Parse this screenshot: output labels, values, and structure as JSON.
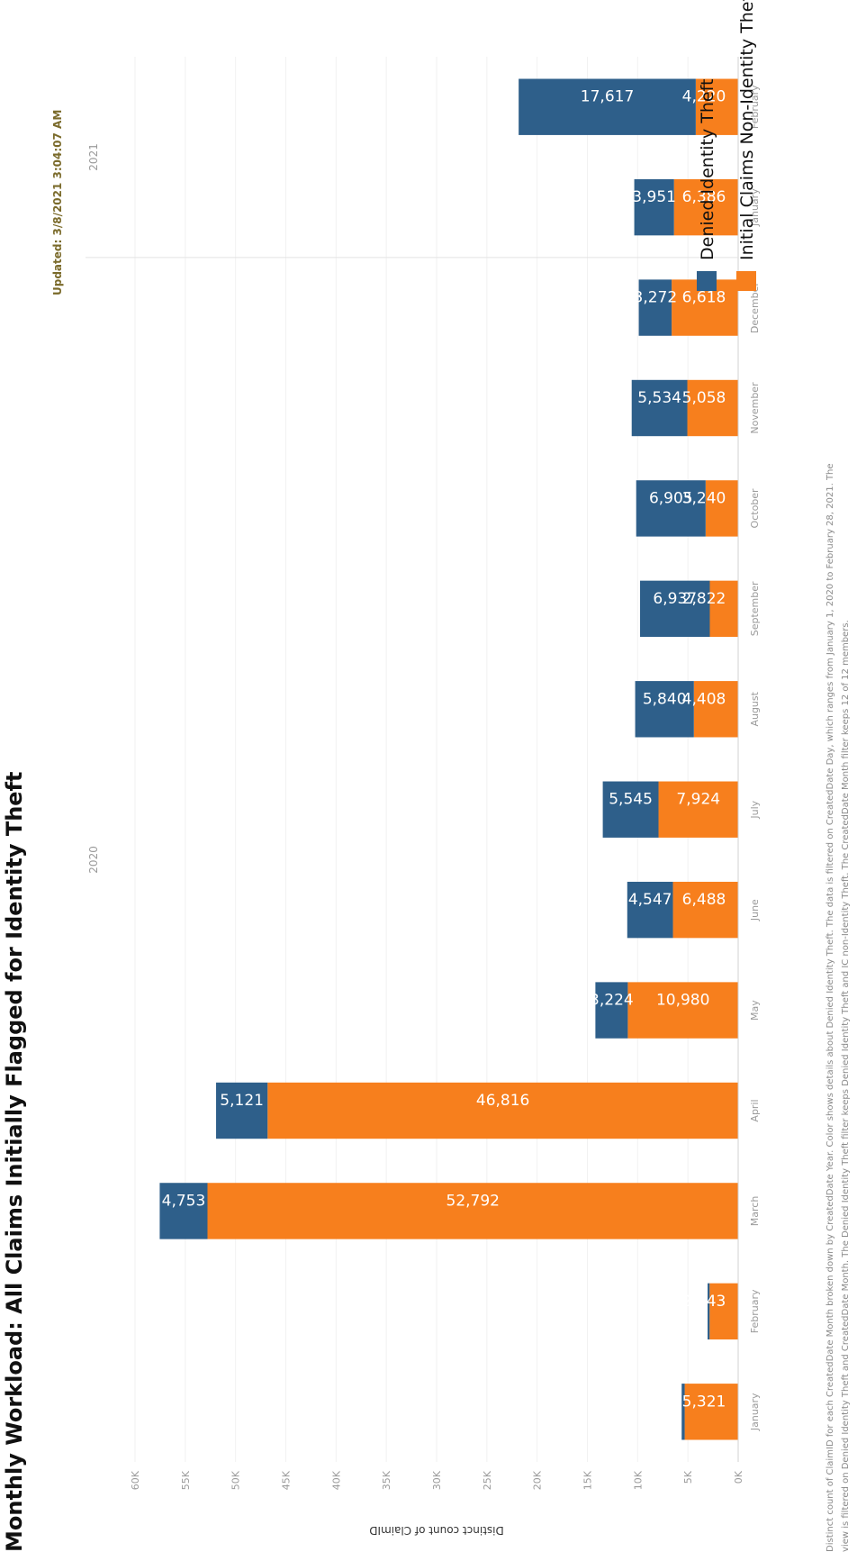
{
  "title": "Monthly Workload: All Claims Initially Flagged for Identity Theft",
  "updated_label": "Updated:",
  "updated_value": "3/8/2021 3:04:07 AM",
  "footnote": [
    "Distinct count of ClaimID for each CreatedDate Month broken down by CreatedDate Year.  Color shows details about Denied Identity Theft. The data is filtered on CreatedDate Day, which ranges from January 1, 2020 to February 28, 2021. The",
    "view is filtered on Denied Identity Theft and CreatedDate Month. The Denied Identity Theft filter keeps Denied Identity Theft and IC non-Identity Theft. The CreatedDate Month filter keeps 12 of 12 members."
  ],
  "colors": {
    "denied": "#2e5f8a",
    "initial": "#f77f1d"
  },
  "chart_data": {
    "type": "bar",
    "stacked": true,
    "orientation": "vertical",
    "ylabel": "Distinct count of ClaimID",
    "ylim": [
      0,
      60000
    ],
    "yticks": [
      "0K",
      "5K",
      "10K",
      "15K",
      "20K",
      "25K",
      "30K",
      "35K",
      "40K",
      "45K",
      "50K",
      "55K",
      "60K"
    ],
    "years": [
      {
        "label": "2020",
        "months": [
          "January",
          "February",
          "March",
          "April",
          "May",
          "June",
          "July",
          "August",
          "September",
          "October",
          "November",
          "December"
        ]
      },
      {
        "label": "2021",
        "months": [
          "January",
          "February"
        ]
      }
    ],
    "categories": [
      "January",
      "February",
      "March",
      "April",
      "May",
      "June",
      "July",
      "August",
      "September",
      "October",
      "November",
      "December",
      "January",
      "February"
    ],
    "series": [
      {
        "name": "Initial Claims Non-Identity Theft",
        "values": [
          5321,
          2843,
          52792,
          46816,
          10980,
          6488,
          7924,
          4408,
          2822,
          3240,
          5058,
          6618,
          6386,
          4220
        ],
        "labels": [
          "5,321",
          "2,843",
          "52,792",
          "46,816",
          "10,980",
          "6,488",
          "7,924",
          "4,408",
          "2,822",
          "3,240",
          "5,058",
          "6,618",
          "6,386",
          "4,220"
        ]
      },
      {
        "name": "Denied Identity Theft",
        "values": [
          300,
          200,
          4753,
          5121,
          3224,
          4547,
          5545,
          5840,
          6937,
          6905,
          5534,
          3272,
          3951,
          17617
        ],
        "labels": [
          "",
          "",
          "4,753",
          "5,121",
          "3,224",
          "4,547",
          "5,545",
          "5,840",
          "6,937",
          "6,905",
          "5,534",
          "3,272",
          "3,951",
          "17,617"
        ]
      }
    ],
    "legend": [
      "Denied Identity Theft",
      "Initial Claims Non-Identity Theft"
    ],
    "legend_position": "top-right"
  }
}
